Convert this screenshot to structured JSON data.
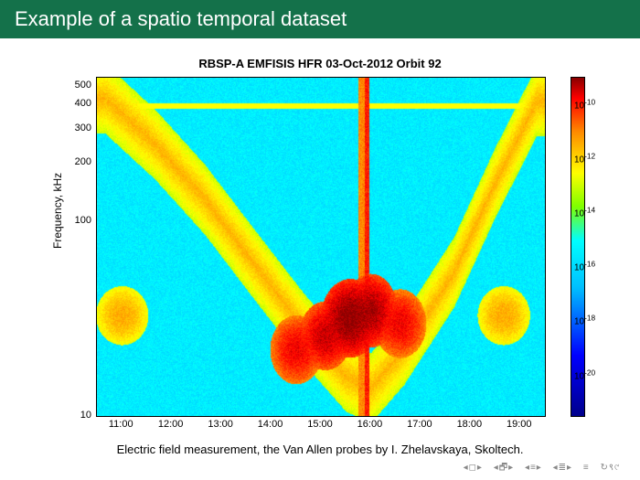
{
  "slide": {
    "title": "Example of a spatio temporal dataset",
    "caption": "Electric field measurement, the Van Allen probes by I. Zhelavskaya, Skoltech.",
    "titlebar_bg": "#14714a",
    "titlebar_fg": "#ffffff"
  },
  "chart": {
    "type": "heatmap",
    "title": "RBSP-A EMFISIS HFR 03-Oct-2012 Orbit 92",
    "title_fontsize": 13,
    "title_fontweight": "bold",
    "ylabel": "Frequency, kHz",
    "label_fontsize": 12,
    "tick_fontsize": 11,
    "x_ticks": [
      "11:00",
      "12:00",
      "13:00",
      "14:00",
      "15:00",
      "16:00",
      "17:00",
      "18:00",
      "19:00"
    ],
    "x_range_minutes": [
      630,
      1170
    ],
    "y_scale": "log",
    "y_ticks": [
      10,
      100,
      200,
      300,
      400,
      500
    ],
    "y_range_khz": [
      10,
      550
    ],
    "colorbar": {
      "scale": "log",
      "ticks_exponent": [
        -10,
        -12,
        -14,
        -16,
        -18,
        -20
      ],
      "range_exponent": [
        -21.5,
        -9
      ],
      "stops": [
        {
          "t": 0.0,
          "color": "#00008b"
        },
        {
          "t": 0.18,
          "color": "#0000ff"
        },
        {
          "t": 0.38,
          "color": "#00bfff"
        },
        {
          "t": 0.52,
          "color": "#00ffff"
        },
        {
          "t": 0.62,
          "color": "#7fff00"
        },
        {
          "t": 0.72,
          "color": "#ffff00"
        },
        {
          "t": 0.84,
          "color": "#ff8c00"
        },
        {
          "t": 0.94,
          "color": "#ff0000"
        },
        {
          "t": 1.0,
          "color": "#8b0000"
        }
      ]
    },
    "background_level_exponent": -15.5,
    "features": {
      "h_lines": [
        {
          "freq_khz": 395,
          "exponent": -12.5,
          "thickness_px": 3
        },
        {
          "freq_khz": 205,
          "exponent": -16.0,
          "thickness_px": 2
        }
      ],
      "v_stripes": [
        {
          "time_min": 945,
          "width_min": 8,
          "exponent": -11
        },
        {
          "time_min": 952,
          "width_min": 6,
          "exponent": -10
        }
      ],
      "u_curve": {
        "points_time_min": [
          640,
          700,
          760,
          820,
          880,
          930,
          960,
          1000,
          1060,
          1110,
          1160
        ],
        "points_freq_khz": [
          430,
          250,
          130,
          60,
          28,
          16,
          14,
          22,
          55,
          160,
          420
        ],
        "thickness_khz_log": 0.1,
        "exponent": -13
      },
      "hot_blobs": [
        {
          "time_min": 870,
          "freq_khz": 22,
          "rx_min": 25,
          "ry_log": 0.14,
          "exponent": -10.5
        },
        {
          "time_min": 905,
          "freq_khz": 26,
          "rx_min": 25,
          "ry_log": 0.14,
          "exponent": -10.2
        },
        {
          "time_min": 935,
          "freq_khz": 32,
          "rx_min": 28,
          "ry_log": 0.16,
          "exponent": -9.8
        },
        {
          "time_min": 960,
          "freq_khz": 35,
          "rx_min": 25,
          "ry_log": 0.15,
          "exponent": -10.0
        },
        {
          "time_min": 995,
          "freq_khz": 30,
          "rx_min": 25,
          "ry_log": 0.14,
          "exponent": -10.5
        },
        {
          "time_min": 660,
          "freq_khz": 33,
          "rx_min": 25,
          "ry_log": 0.12,
          "exponent": -12.2
        },
        {
          "time_min": 1120,
          "freq_khz": 33,
          "rx_min": 25,
          "ry_log": 0.12,
          "exponent": -12.2
        }
      ],
      "noise_seed": 20121003
    }
  },
  "nav": {
    "icons": [
      "first",
      "prev",
      "prev-section",
      "next-section",
      "next",
      "last",
      "refresh"
    ],
    "color": "#888888"
  }
}
